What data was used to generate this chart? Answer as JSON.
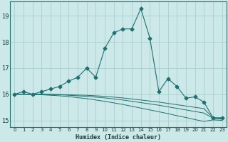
{
  "xlabel": "Humidex (Indice chaleur)",
  "background_color": "#cce8e8",
  "grid_color": "#aacfcf",
  "line_color": "#1f7070",
  "x_values": [
    0,
    1,
    2,
    3,
    4,
    5,
    6,
    7,
    8,
    9,
    10,
    11,
    12,
    13,
    14,
    15,
    16,
    17,
    18,
    19,
    20,
    21,
    22,
    23
  ],
  "main_series": [
    16.0,
    16.1,
    16.0,
    16.1,
    16.2,
    16.3,
    16.5,
    16.65,
    17.0,
    16.65,
    17.75,
    18.35,
    18.5,
    18.5,
    19.28,
    18.15,
    16.1,
    16.6,
    16.3,
    15.85,
    15.9,
    15.7,
    15.1,
    15.1
  ],
  "flat_series1": [
    16.0,
    16.0,
    16.0,
    16.0,
    16.0,
    15.99,
    15.98,
    15.97,
    15.96,
    15.94,
    15.92,
    15.89,
    15.86,
    15.82,
    15.78,
    15.74,
    15.7,
    15.65,
    15.6,
    15.55,
    15.5,
    15.45,
    15.1,
    15.08
  ],
  "flat_series2": [
    16.0,
    16.0,
    16.0,
    16.0,
    15.99,
    15.98,
    15.96,
    15.94,
    15.92,
    15.89,
    15.86,
    15.82,
    15.78,
    15.73,
    15.68,
    15.63,
    15.58,
    15.52,
    15.46,
    15.4,
    15.34,
    15.28,
    15.08,
    15.05
  ],
  "flat_series3": [
    16.0,
    16.0,
    15.99,
    15.98,
    15.96,
    15.94,
    15.91,
    15.87,
    15.83,
    15.78,
    15.73,
    15.67,
    15.61,
    15.54,
    15.47,
    15.4,
    15.33,
    15.26,
    15.18,
    15.11,
    15.03,
    14.96,
    15.02,
    15.0
  ],
  "ylim": [
    14.75,
    19.55
  ],
  "xlim": [
    -0.5,
    23.5
  ],
  "yticks": [
    15,
    16,
    17,
    18,
    19
  ],
  "xticks": [
    0,
    1,
    2,
    3,
    4,
    5,
    6,
    7,
    8,
    9,
    10,
    11,
    12,
    13,
    14,
    15,
    16,
    17,
    18,
    19,
    20,
    21,
    22,
    23
  ],
  "markersize": 2.5
}
